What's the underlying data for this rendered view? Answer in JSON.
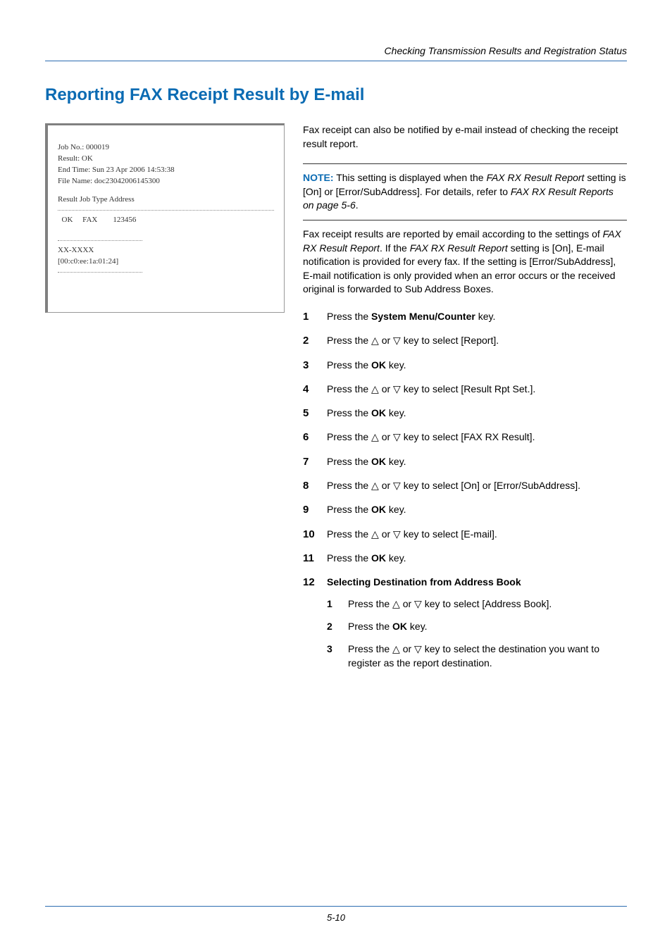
{
  "colors": {
    "brand_blue": "#0b6bb3",
    "rule_blue": "#2b6cb0",
    "text": "#000000",
    "fax_border_grey": "#808080",
    "fax_text": "#333333",
    "dotted": "#888888"
  },
  "typography": {
    "body_family": "Arial",
    "body_size_pt": 10.5,
    "h1_size_pt": 18,
    "fax_family": "Times New Roman",
    "fax_size_pt": 8
  },
  "header": {
    "running": "Checking Transmission Results and Registration Status"
  },
  "title": "Reporting FAX Receipt Result by E-mail",
  "fax_preview": {
    "lines_top": [
      "Job No.:   000019",
      "Result:   OK",
      "End Time:  Sun 23 Apr 2006 14:53:38",
      "File Name:  doc23042006145300"
    ],
    "cols": "Result  Job Type   Address",
    "row": "  OK     FAX        123456",
    "lines_bottom": [
      "XX-XXXX",
      "[00:c0:ee:1a:01:24]"
    ]
  },
  "intro": "Fax receipt can also be notified by e-mail instead of checking the receipt result report.",
  "note": {
    "label": "NOTE:",
    "pre": " This setting is displayed when the ",
    "i1": "FAX RX Result Report",
    "mid1": " setting is [On] or [Error/SubAddress]. For details, refer to ",
    "i2": "FAX RX Result Reports on page 5-6",
    "post": "."
  },
  "para": {
    "p1": "Fax receipt results are reported by email according to the settings of ",
    "i1": "FAX RX Result Report",
    "p2": ". If the ",
    "i2": "FAX RX Result Report",
    "p3": " setting is [On], E-mail notification is provided for every fax. If the setting is [Error/SubAddress], E-mail notification is only provided when an error occurs or the received original is forwarded to Sub Address Boxes."
  },
  "arrows": {
    "up": "△",
    "down": "▽"
  },
  "steps": [
    {
      "n": "1",
      "pre": "Press the ",
      "bold": "System Menu/Counter",
      "post": " key."
    },
    {
      "n": "2",
      "arrow": true,
      "tail": " key to select [Report]."
    },
    {
      "n": "3",
      "pre": "Press the ",
      "bold": "OK",
      "post": " key."
    },
    {
      "n": "4",
      "arrow": true,
      "tail": " key to select [Result Rpt Set.]."
    },
    {
      "n": "5",
      "pre": "Press the ",
      "bold": "OK",
      "post": " key."
    },
    {
      "n": "6",
      "arrow": true,
      "tail": " key to select [FAX RX Result]."
    },
    {
      "n": "7",
      "pre": "Press the ",
      "bold": "OK",
      "post": " key."
    },
    {
      "n": "8",
      "arrow": true,
      "tail": " key to select [On] or [Error/SubAddress]."
    },
    {
      "n": "9",
      "pre": "Press the ",
      "bold": "OK",
      "post": " key."
    },
    {
      "n": "10",
      "arrow": true,
      "tail": " key to select [E-mail]."
    },
    {
      "n": "11",
      "pre": "Press the ",
      "bold": "OK",
      "post": " key."
    }
  ],
  "step12": {
    "n": "12",
    "heading": "Selecting Destination from Address Book",
    "sub": [
      {
        "n": "1",
        "arrow": true,
        "tail": " key to select [Address Book]."
      },
      {
        "n": "2",
        "pre": "Press the ",
        "bold": "OK",
        "post": " key."
      },
      {
        "n": "3",
        "arrow": true,
        "tail": " key to select the destination you want to register as the report destination."
      }
    ]
  },
  "arrow_sentence": {
    "pre": "Press the ",
    "or": " or "
  },
  "footer": "5-10"
}
